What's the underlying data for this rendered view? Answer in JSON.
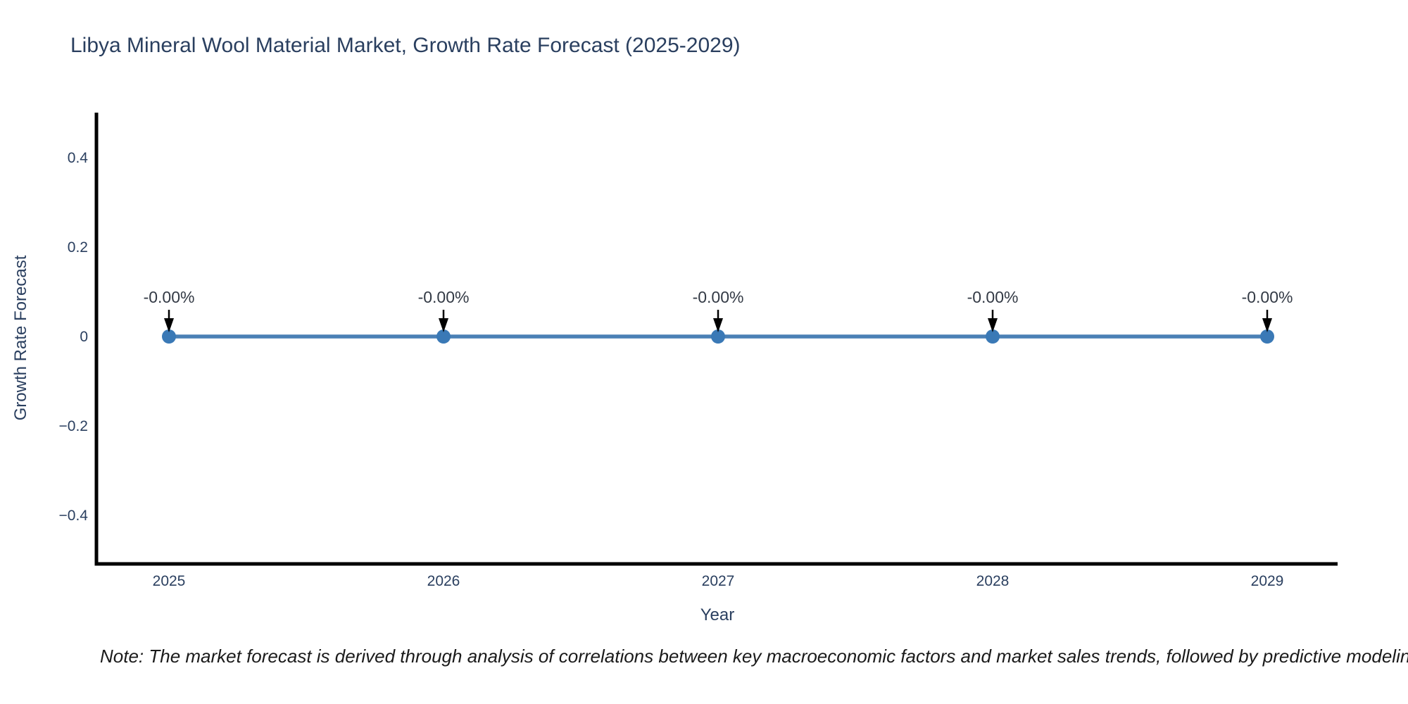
{
  "chart_title": "Libya Mineral Wool Material Market, Growth Rate Forecast (2025-2029)",
  "note": "Note: The market forecast is derived through analysis of correlations between key macroeconomic factors and market sales trends, followed by predictive modeling to project future sales.",
  "chart_data": {
    "type": "line",
    "title": "Libya Mineral Wool Material Market, Growth Rate Forecast (2025-2029)",
    "x": [
      "2025",
      "2026",
      "2027",
      "2028",
      "2029"
    ],
    "values": [
      0,
      0,
      0,
      0,
      0
    ],
    "point_labels": [
      "-0.00%",
      "-0.00%",
      "-0.00%",
      "-0.00%",
      "-0.00%"
    ],
    "xlabel": "Year",
    "ylabel": "Growth Rate Forecast",
    "yticks": {
      "values": [
        0.4,
        0.2,
        0,
        -0.2,
        -0.4
      ],
      "labels": [
        "0.4",
        "0.2",
        "0",
        "−0.2",
        "−0.4"
      ]
    },
    "ylim": [
      -0.51,
      0.5
    ],
    "grid": false,
    "legend": false,
    "colors": {
      "line": "#4a80b6",
      "marker": "#3a79b6",
      "arrow": "#000000",
      "axis": "#000000",
      "text": "#2a3f5f",
      "annotation": "#333a45",
      "note_text": "#1a1a1a"
    }
  }
}
